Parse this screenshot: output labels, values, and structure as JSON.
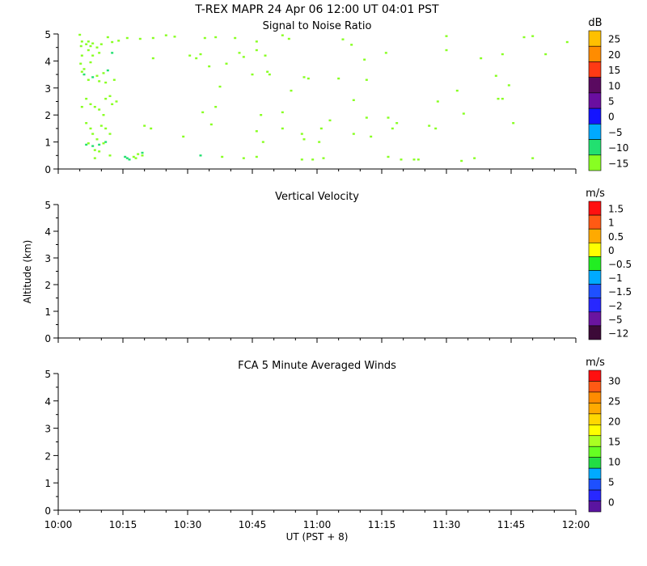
{
  "header": {
    "title": "T-REX  MAPR 24 Apr 06  12:00 UT  04:01  PST"
  },
  "x_axis": {
    "label": "UT  (PST + 8)",
    "ticks": [
      "10:00",
      "10:15",
      "10:30",
      "10:45",
      "11:00",
      "11:15",
      "11:30",
      "11:45",
      "12:00"
    ],
    "range_minutes": [
      0,
      120
    ]
  },
  "y_axis": {
    "label": "Altitude (km)",
    "ticks": [
      "0",
      "1",
      "2",
      "3",
      "4",
      "5"
    ],
    "range": [
      0,
      5
    ]
  },
  "panels": [
    {
      "title": "Signal to Noise Ratio",
      "unit": "dB",
      "colorbar_labels": [
        "25",
        "20",
        "15",
        "10",
        "5",
        "0",
        "−5",
        "−10",
        "−15"
      ],
      "colorbar_colors": [
        "#ffc000",
        "#ff8c00",
        "#ff3a14",
        "#5a0a60",
        "#6a0ea0",
        "#1414ff",
        "#00aaff",
        "#22e070",
        "#88ff22"
      ]
    },
    {
      "title": "Vertical Velocity",
      "unit": "m/s",
      "colorbar_labels": [
        "1.5",
        "1",
        "0.5",
        "0",
        "−0.5",
        "−1",
        "−1.5",
        "−2",
        "−5",
        "−12"
      ],
      "colorbar_colors": [
        "#ff1010",
        "#ff5a14",
        "#ffaa00",
        "#ffff00",
        "#22ee22",
        "#00aaff",
        "#1e50ff",
        "#2828ff",
        "#6a14a0",
        "#3c0a38"
      ]
    },
    {
      "title": "FCA 5 Minute Averaged Winds",
      "unit": "m/s",
      "colorbar_labels": [
        "30",
        "25",
        "20",
        "15",
        "10",
        "5",
        "0"
      ],
      "colorbar_colors": [
        "#ff1010",
        "#ff5a14",
        "#ff8c00",
        "#ffaa00",
        "#ffd700",
        "#ffff00",
        "#aaff22",
        "#66ff22",
        "#22dd44",
        "#00aaff",
        "#1e50ff",
        "#2828ff",
        "#5a14a0"
      ]
    }
  ],
  "chart_data": {
    "type": "heatmap",
    "snr_points": [
      [
        5.0,
        4.97,
        -15
      ],
      [
        5.5,
        4.72,
        -15
      ],
      [
        5.3,
        4.55,
        -15
      ],
      [
        6.5,
        4.62,
        -15
      ],
      [
        7.0,
        4.72,
        -15
      ],
      [
        7.5,
        4.55,
        -15
      ],
      [
        8.0,
        4.65,
        -15
      ],
      [
        9.0,
        4.5,
        -15
      ],
      [
        10.0,
        4.62,
        -15
      ],
      [
        11.5,
        4.88,
        -15
      ],
      [
        12.5,
        4.7,
        -15
      ],
      [
        14.0,
        4.75,
        -15
      ],
      [
        16.0,
        4.85,
        -15
      ],
      [
        19.0,
        4.82,
        -15
      ],
      [
        22.0,
        4.85,
        -15
      ],
      [
        25.0,
        4.95,
        -15
      ],
      [
        27.0,
        4.9,
        -15
      ],
      [
        34.0,
        4.85,
        -15
      ],
      [
        36.5,
        4.88,
        -15
      ],
      [
        41.0,
        4.85,
        -15
      ],
      [
        46.0,
        4.72,
        -15
      ],
      [
        52.0,
        4.95,
        -15
      ],
      [
        53.5,
        4.82,
        -15
      ],
      [
        66.0,
        4.8,
        -15
      ],
      [
        68.0,
        4.6,
        -15
      ],
      [
        90.0,
        4.92,
        -15
      ],
      [
        108.0,
        4.88,
        -15
      ],
      [
        110.0,
        4.92,
        -15
      ],
      [
        118.0,
        4.7,
        -15
      ],
      [
        5.5,
        4.2,
        -15
      ],
      [
        5.2,
        3.9,
        -15
      ],
      [
        6.0,
        3.7,
        -15
      ],
      [
        7.0,
        4.4,
        -15
      ],
      [
        7.5,
        3.95,
        -15
      ],
      [
        8.0,
        4.2,
        -15
      ],
      [
        9.5,
        4.3,
        -15
      ],
      [
        12.5,
        4.3,
        -10
      ],
      [
        22.0,
        4.1,
        -15
      ],
      [
        30.5,
        4.2,
        -15
      ],
      [
        32.0,
        4.1,
        -15
      ],
      [
        33.0,
        4.25,
        -15
      ],
      [
        35.0,
        3.8,
        -15
      ],
      [
        42.0,
        4.3,
        -15
      ],
      [
        43.0,
        4.15,
        -15
      ],
      [
        46.0,
        4.4,
        -15
      ],
      [
        48.0,
        4.2,
        -15
      ],
      [
        48.5,
        3.6,
        -15
      ],
      [
        71.0,
        4.05,
        -15
      ],
      [
        76.0,
        4.3,
        -15
      ],
      [
        90.0,
        4.4,
        -15
      ],
      [
        98.0,
        4.1,
        -15
      ],
      [
        103.0,
        4.25,
        -15
      ],
      [
        113.0,
        4.25,
        -15
      ],
      [
        5.5,
        3.6,
        -15
      ],
      [
        6.0,
        3.5,
        -10
      ],
      [
        7.0,
        3.3,
        -15
      ],
      [
        8.0,
        3.4,
        -10
      ],
      [
        9.0,
        3.45,
        -15
      ],
      [
        9.5,
        3.25,
        -15
      ],
      [
        10.5,
        3.55,
        -15
      ],
      [
        11.5,
        3.65,
        -10
      ],
      [
        11.0,
        3.2,
        -15
      ],
      [
        13.0,
        3.3,
        -15
      ],
      [
        37.5,
        3.05,
        -15
      ],
      [
        39.0,
        3.9,
        -15
      ],
      [
        45.0,
        3.5,
        -15
      ],
      [
        49.0,
        3.5,
        -15
      ],
      [
        54.0,
        2.9,
        -15
      ],
      [
        57.0,
        3.4,
        -15
      ],
      [
        58.0,
        3.35,
        -15
      ],
      [
        65.0,
        3.35,
        -15
      ],
      [
        71.5,
        3.3,
        -15
      ],
      [
        101.5,
        3.45,
        -15
      ],
      [
        102.0,
        2.6,
        -15
      ],
      [
        103.0,
        2.6,
        -15
      ],
      [
        104.5,
        3.1,
        -15
      ],
      [
        88.0,
        2.5,
        -15
      ],
      [
        92.5,
        2.9,
        -15
      ],
      [
        5.5,
        2.3,
        -15
      ],
      [
        6.5,
        2.6,
        -15
      ],
      [
        7.5,
        2.4,
        -15
      ],
      [
        8.5,
        2.3,
        -15
      ],
      [
        9.5,
        2.2,
        -15
      ],
      [
        10.5,
        2.0,
        -15
      ],
      [
        11.0,
        2.6,
        -15
      ],
      [
        12.5,
        2.4,
        -15
      ],
      [
        12.0,
        2.7,
        -15
      ],
      [
        13.5,
        2.5,
        -15
      ],
      [
        33.5,
        2.1,
        -15
      ],
      [
        36.5,
        2.3,
        -15
      ],
      [
        47.0,
        2.0,
        -15
      ],
      [
        52.0,
        2.1,
        -15
      ],
      [
        63.0,
        1.8,
        -15
      ],
      [
        71.5,
        1.9,
        -15
      ],
      [
        68.5,
        2.55,
        -15
      ],
      [
        76.5,
        1.9,
        -15
      ],
      [
        87.5,
        1.5,
        -15
      ],
      [
        94.0,
        2.05,
        -15
      ],
      [
        105.5,
        1.7,
        -15
      ],
      [
        6.5,
        1.7,
        -15
      ],
      [
        7.5,
        1.5,
        -15
      ],
      [
        8.0,
        1.3,
        -15
      ],
      [
        9.0,
        1.1,
        -15
      ],
      [
        10.0,
        1.6,
        -15
      ],
      [
        11.0,
        1.5,
        -15
      ],
      [
        6.5,
        0.9,
        -10
      ],
      [
        7.0,
        0.95,
        -15
      ],
      [
        8.0,
        0.85,
        -10
      ],
      [
        9.5,
        0.9,
        -10
      ],
      [
        10.5,
        0.95,
        -15
      ],
      [
        11.0,
        1.0,
        -10
      ],
      [
        8.5,
        0.7,
        -15
      ],
      [
        9.5,
        0.65,
        -15
      ],
      [
        12.0,
        1.3,
        -15
      ],
      [
        20.0,
        1.6,
        -15
      ],
      [
        21.5,
        1.5,
        -15
      ],
      [
        29.0,
        1.2,
        -15
      ],
      [
        35.5,
        1.65,
        -15
      ],
      [
        46.0,
        1.4,
        -15
      ],
      [
        47.5,
        1.0,
        -15
      ],
      [
        52.0,
        1.5,
        -15
      ],
      [
        56.5,
        1.3,
        -15
      ],
      [
        57.0,
        1.1,
        -15
      ],
      [
        60.5,
        1.0,
        -15
      ],
      [
        61.0,
        1.5,
        -15
      ],
      [
        68.5,
        1.3,
        -15
      ],
      [
        72.5,
        1.2,
        -15
      ],
      [
        77.5,
        1.5,
        -15
      ],
      [
        78.5,
        1.7,
        -15
      ],
      [
        86.0,
        1.6,
        -15
      ],
      [
        15.5,
        0.45,
        -10
      ],
      [
        16.0,
        0.4,
        -10
      ],
      [
        16.5,
        0.35,
        -10
      ],
      [
        17.5,
        0.45,
        -15
      ],
      [
        18.0,
        0.4,
        -15
      ],
      [
        18.5,
        0.55,
        -15
      ],
      [
        19.5,
        0.5,
        -15
      ],
      [
        19.5,
        0.6,
        -10
      ],
      [
        8.5,
        0.4,
        -15
      ],
      [
        12.0,
        0.5,
        -15
      ],
      [
        33.0,
        0.5,
        -10
      ],
      [
        38.0,
        0.45,
        -15
      ],
      [
        43.0,
        0.4,
        -15
      ],
      [
        46.0,
        0.45,
        -15
      ],
      [
        56.5,
        0.35,
        -15
      ],
      [
        59.0,
        0.35,
        -15
      ],
      [
        61.5,
        0.4,
        -15
      ],
      [
        76.5,
        0.45,
        -15
      ],
      [
        79.5,
        0.35,
        -15
      ],
      [
        82.5,
        0.35,
        -15
      ],
      [
        83.5,
        0.35,
        -15
      ],
      [
        93.5,
        0.3,
        -15
      ],
      [
        96.5,
        0.4,
        -15
      ],
      [
        110.0,
        0.4,
        -15
      ]
    ],
    "vertical_velocity_points": [],
    "wind_points": []
  }
}
